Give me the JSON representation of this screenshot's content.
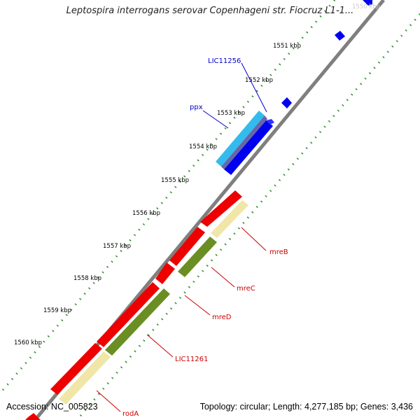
{
  "title": "Leptospira interrogans serovar Copenhageni str. Fiocruz L1-1...",
  "footer": {
    "accession": "Accession: NC_005823",
    "summary": "Topology: circular; Length: 4,277,185 bp; Genes: 3,436"
  },
  "colors": {
    "backbone": "#7f7f7f",
    "tick_dots": "#2e8b2e",
    "blue_gene": "#0000ee",
    "cyan_gene": "#33bbee",
    "red_gene": "#ee0000",
    "olive_gene": "#6b8e23",
    "yellow_gene": "#f0e6a8",
    "label_blue": "#0000cc",
    "label_red": "#cc0000"
  },
  "ticks": [
    "1551 kbp",
    "1552 kbp",
    "1553 kbp",
    "1554 kbp",
    "1555 kbp",
    "1556 kbp",
    "1557 kbp",
    "1558 kbp",
    "1559 kbp",
    "1560 kbp"
  ],
  "gene_labels": [
    "LIC11256",
    "ppx",
    "mreB",
    "mreC",
    "mreD",
    "LIC11261",
    "rodA"
  ]
}
